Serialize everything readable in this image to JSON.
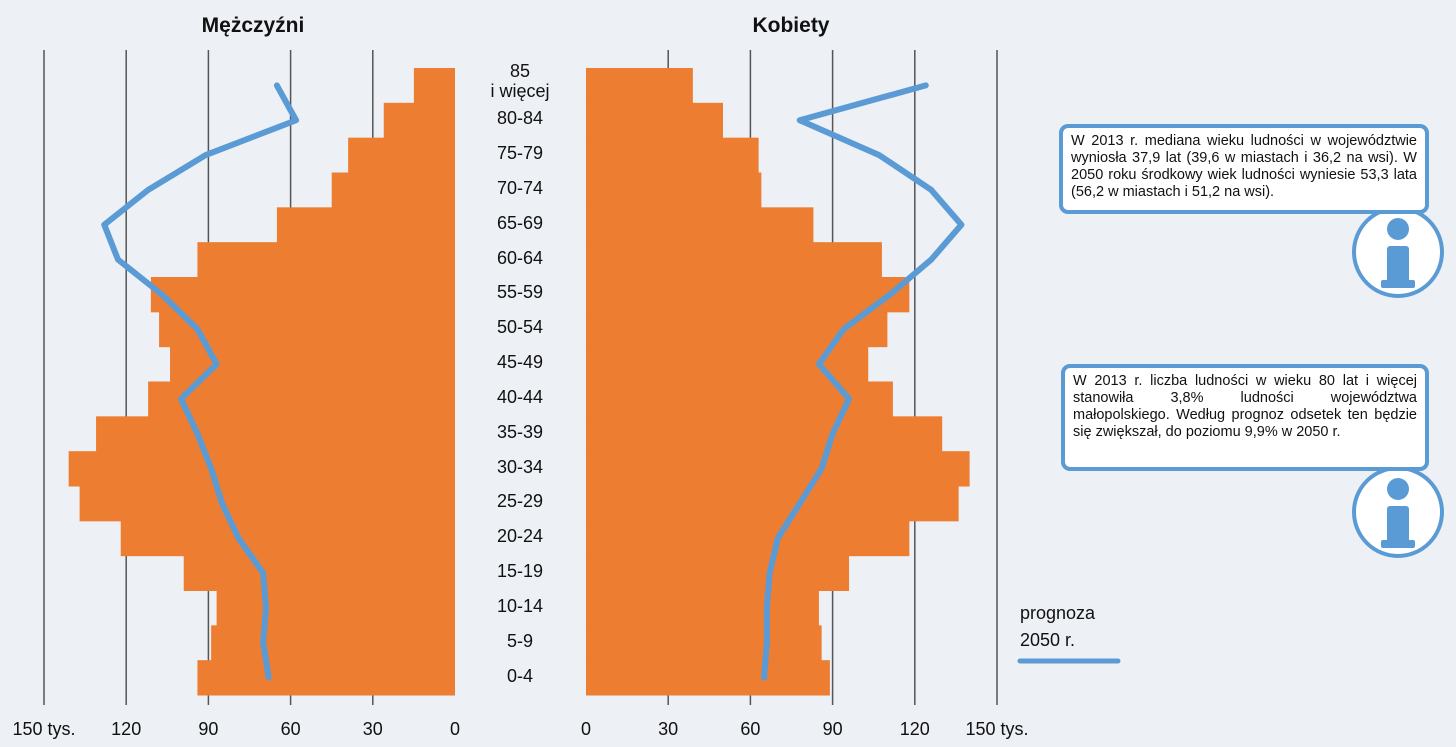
{
  "chart_data": {
    "type": "population-pyramid",
    "categories": [
      "0-4",
      "5-9",
      "10-14",
      "15-19",
      "20-24",
      "25-29",
      "30-34",
      "35-39",
      "40-44",
      "45-49",
      "50-54",
      "55-59",
      "60-64",
      "65-69",
      "70-74",
      "75-79",
      "80-84",
      "85\ni więcej"
    ],
    "series": [
      {
        "name": "Mężczyźni",
        "side": "left",
        "color": "#ed7d31",
        "values": [
          94,
          89,
          87,
          99,
          122,
          137,
          141,
          131,
          112,
          104,
          108,
          111,
          94,
          65,
          45,
          39,
          26,
          15
        ]
      },
      {
        "name": "Kobiety",
        "side": "right",
        "color": "#ed7d31",
        "values": [
          89,
          86,
          85,
          96,
          118,
          136,
          140,
          130,
          112,
          103,
          110,
          118,
          108,
          83,
          64,
          63,
          50,
          39
        ]
      }
    ],
    "projection": {
      "name": "prognoza\n2050 r.",
      "color": "#5b9bd5",
      "series": [
        [
          68,
          70,
          69,
          70,
          79,
          85,
          89,
          94,
          100,
          87,
          94,
          107,
          123,
          128,
          112,
          91,
          58,
          65
        ],
        [
          65,
          66,
          66,
          67,
          70,
          78,
          86,
          90,
          96,
          85,
          94,
          111,
          126,
          137,
          126,
          107,
          78,
          124
        ]
      ]
    },
    "xlim": [
      0,
      150
    ],
    "xticks": [
      0,
      30,
      60,
      90,
      120,
      {
        "value": 150,
        "label": "150 tys."
      }
    ],
    "grid": true,
    "notes": [
      "W 2013 r. mediana wieku ludności w województwie wyniosła 37,9 lat (39,6 w miastach i 36,2 na wsi). W 2050 roku środkowy wiek ludności wyniesie 53,3 lata (56,2 w miastach i 51,2 na wsi).",
      "W 2013 r. liczba ludności w wieku 80 lat i więcej stanowiła 3,8% ludności województwa małopolskiego. Według prognoz odsetek ten będzie się zwiększał, do poziomu 9,9% w 2050 r."
    ]
  }
}
